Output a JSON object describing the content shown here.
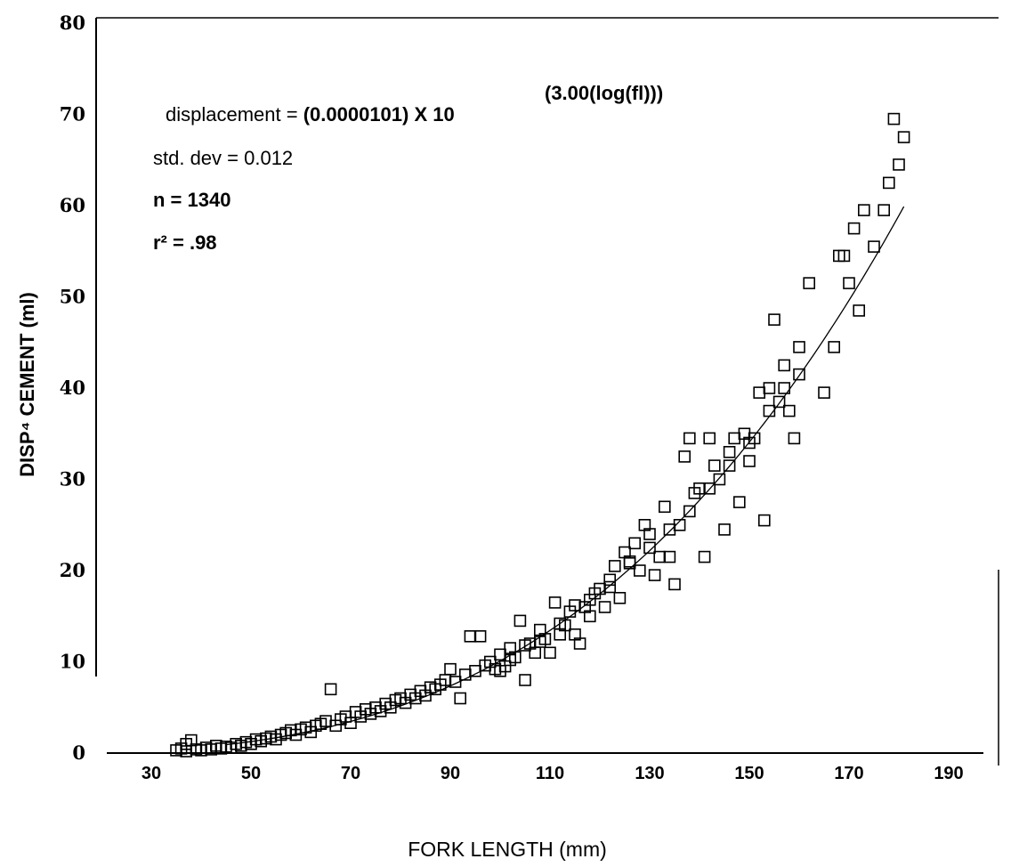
{
  "chart_data": {
    "type": "scatter",
    "xlabel": "FORK LENGTH (mm)",
    "ylabel": "DISP⁴ CEMENT (ml)",
    "xlim": [
      20,
      200
    ],
    "ylim": [
      0,
      80
    ],
    "x_ticks": [
      "30",
      "50",
      "70",
      "90",
      "110",
      "130",
      "150",
      "170",
      "190"
    ],
    "y_ticks": [
      "0",
      "10",
      "20",
      "30",
      "40",
      "50",
      "60",
      "70",
      "80"
    ],
    "annotations": {
      "line1_prefix": "displacement = ",
      "line1_formula": "(0.0000101) X 10",
      "line1_exponent": "(3.00(log(fl)))",
      "line2": "std. dev = 0.012",
      "line3": "n = 1340",
      "line4": "r² = .98"
    },
    "fit": {
      "coefficient": 1.01e-05,
      "exponent": 3.0,
      "x_range": [
        45,
        181
      ]
    },
    "marker": "open-square",
    "points": [
      [
        35,
        0.3
      ],
      [
        36,
        0.5
      ],
      [
        37,
        0.2
      ],
      [
        37,
        1.0
      ],
      [
        38,
        1.4
      ],
      [
        39,
        0.4
      ],
      [
        40,
        0.3
      ],
      [
        41,
        0.6
      ],
      [
        42,
        0.4
      ],
      [
        43,
        0.8
      ],
      [
        44,
        0.5
      ],
      [
        45,
        0.7
      ],
      [
        46,
        0.6
      ],
      [
        47,
        1.0
      ],
      [
        48,
        0.8
      ],
      [
        49,
        1.2
      ],
      [
        50,
        1.0
      ],
      [
        51,
        1.5
      ],
      [
        52,
        1.3
      ],
      [
        53,
        1.6
      ],
      [
        54,
        1.8
      ],
      [
        55,
        1.5
      ],
      [
        56,
        2.0
      ],
      [
        57,
        2.2
      ],
      [
        58,
        2.5
      ],
      [
        59,
        2.0
      ],
      [
        60,
        2.6
      ],
      [
        61,
        2.8
      ],
      [
        62,
        2.3
      ],
      [
        63,
        3.0
      ],
      [
        64,
        3.2
      ],
      [
        65,
        3.5
      ],
      [
        66,
        7.0
      ],
      [
        67,
        3.0
      ],
      [
        68,
        3.7
      ],
      [
        69,
        4.0
      ],
      [
        70,
        3.3
      ],
      [
        71,
        4.5
      ],
      [
        72,
        4.0
      ],
      [
        73,
        4.8
      ],
      [
        74,
        4.3
      ],
      [
        75,
        5.0
      ],
      [
        76,
        4.6
      ],
      [
        77,
        5.4
      ],
      [
        78,
        5.0
      ],
      [
        79,
        5.8
      ],
      [
        80,
        6.0
      ],
      [
        81,
        5.5
      ],
      [
        82,
        6.4
      ],
      [
        83,
        6.0
      ],
      [
        84,
        6.8
      ],
      [
        85,
        6.3
      ],
      [
        86,
        7.2
      ],
      [
        87,
        7.0
      ],
      [
        88,
        7.5
      ],
      [
        89,
        8.0
      ],
      [
        90,
        9.2
      ],
      [
        91,
        7.8
      ],
      [
        92,
        6.0
      ],
      [
        93,
        8.6
      ],
      [
        94,
        12.8
      ],
      [
        95,
        9.0
      ],
      [
        96,
        12.8
      ],
      [
        97,
        9.6
      ],
      [
        98,
        10.0
      ],
      [
        99,
        9.2
      ],
      [
        100,
        10.8
      ],
      [
        101,
        9.5
      ],
      [
        102,
        11.5
      ],
      [
        103,
        10.5
      ],
      [
        104,
        14.5
      ],
      [
        105,
        8.0
      ],
      [
        106,
        12.0
      ],
      [
        107,
        11.0
      ],
      [
        108,
        13.5
      ],
      [
        109,
        12.5
      ],
      [
        110,
        11.0
      ],
      [
        111,
        16.5
      ],
      [
        112,
        13.0
      ],
      [
        113,
        14.0
      ],
      [
        114,
        15.5
      ],
      [
        115,
        13.0
      ],
      [
        116,
        12.0
      ],
      [
        117,
        16.0
      ],
      [
        118,
        15.0
      ],
      [
        119,
        17.5
      ],
      [
        120,
        18.0
      ],
      [
        121,
        16.0
      ],
      [
        122,
        19.0
      ],
      [
        123,
        20.5
      ],
      [
        124,
        17.0
      ],
      [
        125,
        22.0
      ],
      [
        126,
        21.0
      ],
      [
        127,
        23.0
      ],
      [
        128,
        20.0
      ],
      [
        129,
        25.0
      ],
      [
        130,
        24.0
      ],
      [
        131,
        19.5
      ],
      [
        132,
        21.5
      ],
      [
        133,
        27.0
      ],
      [
        134,
        21.5
      ],
      [
        135,
        18.5
      ],
      [
        136,
        25.0
      ],
      [
        137,
        32.5
      ],
      [
        138,
        34.5
      ],
      [
        139,
        28.5
      ],
      [
        140,
        29.0
      ],
      [
        141,
        21.5
      ],
      [
        142,
        34.5
      ],
      [
        143,
        31.5
      ],
      [
        144,
        30.0
      ],
      [
        145,
        24.5
      ],
      [
        146,
        33.0
      ],
      [
        147,
        34.5
      ],
      [
        148,
        27.5
      ],
      [
        149,
        35.0
      ],
      [
        150,
        32.0
      ],
      [
        151,
        34.5
      ],
      [
        152,
        39.5
      ],
      [
        153,
        25.5
      ],
      [
        154,
        40.0
      ],
      [
        155,
        47.5
      ],
      [
        156,
        38.5
      ],
      [
        157,
        42.5
      ],
      [
        158,
        37.5
      ],
      [
        159,
        34.5
      ],
      [
        160,
        44.5
      ],
      [
        162,
        51.5
      ],
      [
        165,
        39.5
      ],
      [
        167,
        44.5
      ],
      [
        168,
        54.5
      ],
      [
        169,
        54.5
      ],
      [
        170,
        51.5
      ],
      [
        171,
        57.5
      ],
      [
        172,
        48.5
      ],
      [
        173,
        59.5
      ],
      [
        175,
        55.5
      ],
      [
        177,
        59.5
      ],
      [
        178,
        62.5
      ],
      [
        179,
        69.5
      ],
      [
        180,
        64.5
      ],
      [
        181,
        67.5
      ],
      [
        100,
        9.0
      ],
      [
        102,
        10.2
      ],
      [
        105,
        11.8
      ],
      [
        108,
        12.2
      ],
      [
        112,
        14.2
      ],
      [
        115,
        16.2
      ],
      [
        118,
        16.8
      ],
      [
        122,
        18.2
      ],
      [
        126,
        20.8
      ],
      [
        130,
        22.5
      ],
      [
        134,
        24.5
      ],
      [
        138,
        26.5
      ],
      [
        142,
        29.0
      ],
      [
        146,
        31.5
      ],
      [
        150,
        34.0
      ],
      [
        154,
        37.5
      ],
      [
        157,
        40.0
      ],
      [
        160,
        41.5
      ]
    ]
  }
}
